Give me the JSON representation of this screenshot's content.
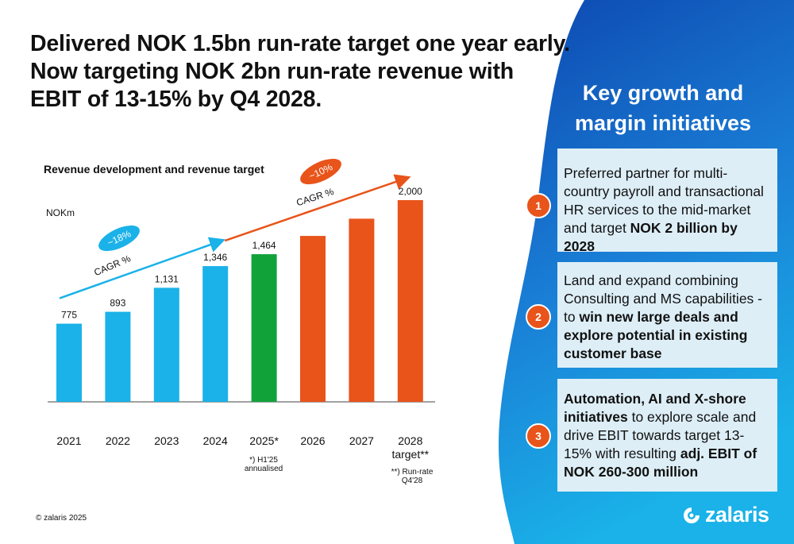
{
  "headline": {
    "line1": "Delivered NOK 1.5bn run-rate target one year early.",
    "line2": "Now targeting NOK 2bn run-rate revenue with",
    "line3": "EBIT of 13-15% by Q4 2028."
  },
  "chart_data": {
    "type": "bar",
    "title": "Revenue development and revenue target",
    "ylabel": "NOKm",
    "categories": [
      "2021",
      "2022",
      "2023",
      "2024",
      "2025*",
      "2026",
      "2027",
      "2028"
    ],
    "category_sublabels": [
      "",
      "",
      "",
      "",
      "",
      "",
      "",
      "target**"
    ],
    "values": [
      775,
      893,
      1131,
      1346,
      1464,
      1645,
      1816,
      2000
    ],
    "data_labels": [
      "775",
      "893",
      "1,131",
      "1,346",
      "1,464",
      "",
      "",
      "2,000"
    ],
    "bar_colors": [
      "#1ab2e8",
      "#1ab2e8",
      "#1ab2e8",
      "#1ab2e8",
      "#12a23a",
      "#e8541a",
      "#e8541a",
      "#e8541a"
    ],
    "ylim": [
      0,
      2000
    ],
    "annotations": [
      {
        "badge": "~18%",
        "label": "CAGR %",
        "color": "#1ab2e8"
      },
      {
        "badge": "~10%",
        "label": "CAGR %",
        "color": "#e8541a"
      }
    ],
    "footnotes": [
      "*) H1'25 annualised",
      "**) Run-rate Q4'28"
    ]
  },
  "copyright": "© zalaris 2025",
  "panel": {
    "title_line1": "Key growth and",
    "title_line2": "margin initiatives",
    "items": [
      {
        "number": "1",
        "text_a": "Preferred partner for multi-country payroll and transactional HR services to the mid-market and target ",
        "bold_b": "NOK 2 billion by 2028",
        "text_c": "",
        "bold_d": "",
        "text_e": "",
        "bold_f": ""
      },
      {
        "number": "2",
        "text_a": "Land and expand combining Consulting and MS capabilities - to ",
        "bold_b": "win new large deals and explore potential in existing customer base",
        "text_c": "",
        "bold_d": "",
        "text_e": "",
        "bold_f": ""
      },
      {
        "number": "3",
        "text_a": "",
        "bold_b": "Automation, AI and X-shore initiatives",
        "text_c": " to explore scale and drive EBIT towards target 13-15% with resulting ",
        "bold_d": "adj. EBIT of NOK 260-300 million",
        "text_e": "",
        "bold_f": ""
      }
    ]
  },
  "logo": {
    "text": "zalaris",
    "icon": "zalaris-logo-icon"
  },
  "colors": {
    "blue": "#1ab2e8",
    "green": "#12a23a",
    "orange": "#e8541a",
    "panel_blue": "#1565c0",
    "box_bg": "#ddeef7"
  }
}
